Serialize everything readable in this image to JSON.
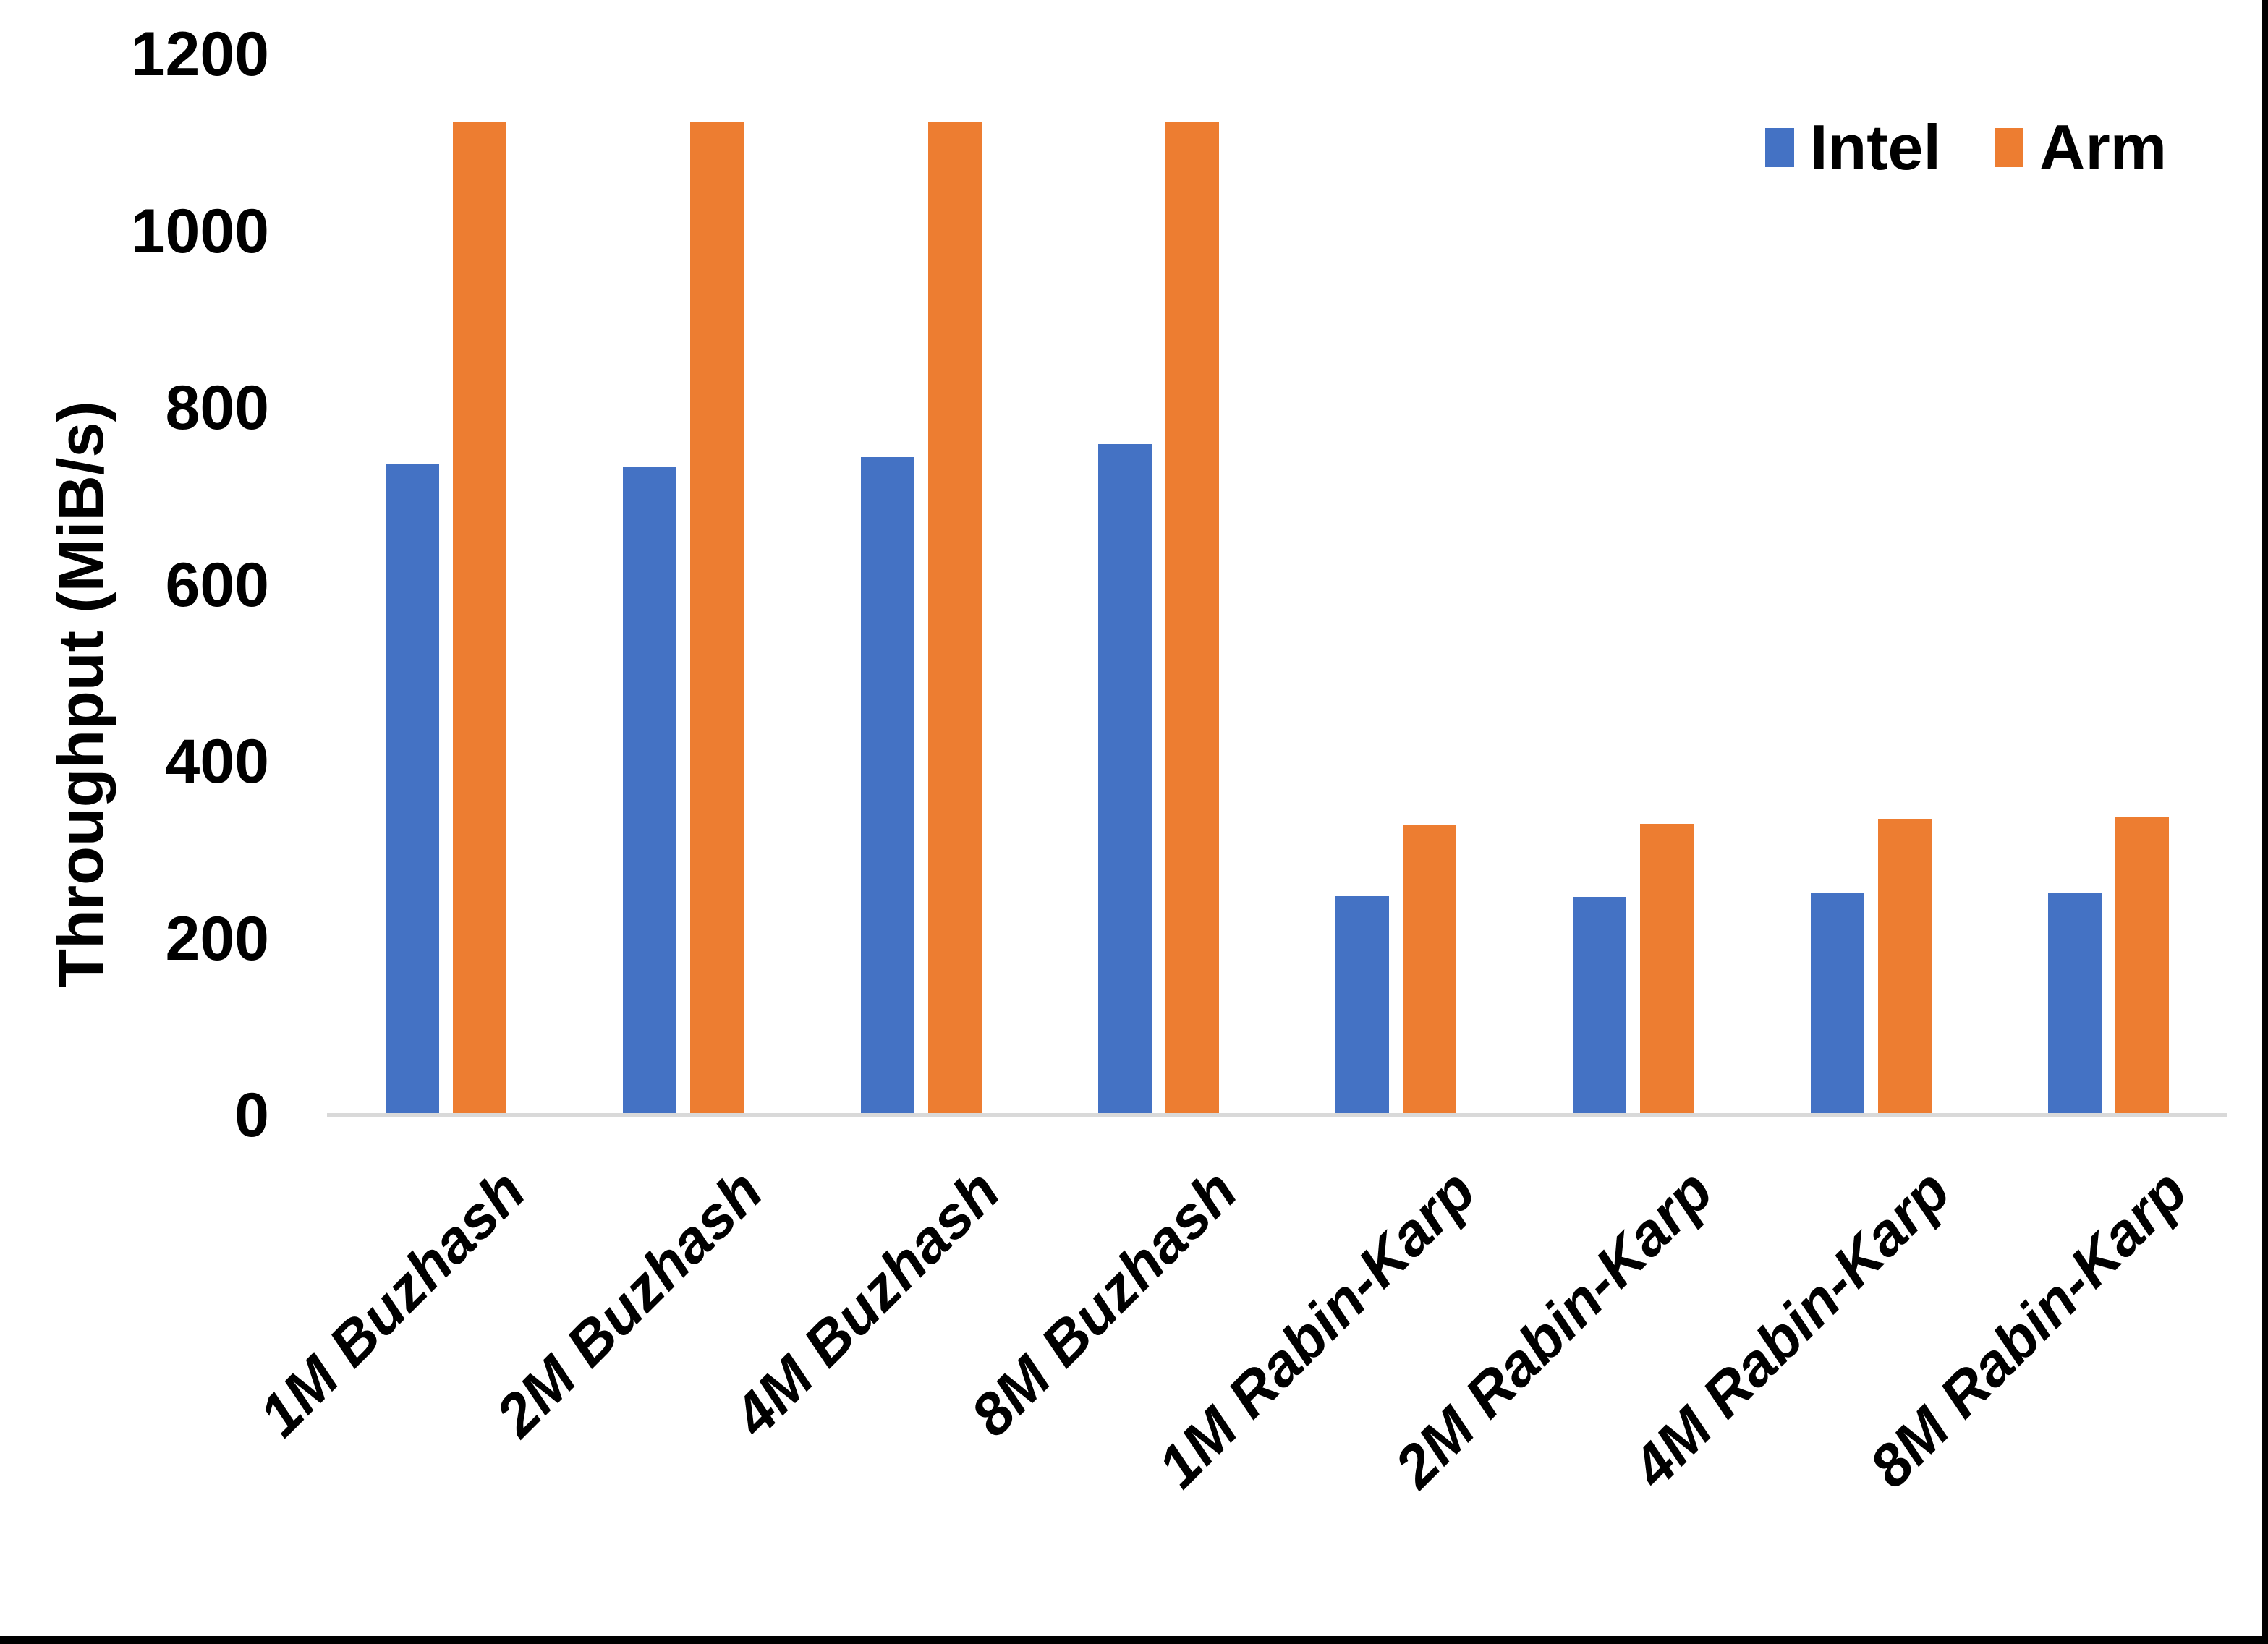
{
  "chart_data": {
    "type": "bar",
    "title": "",
    "xlabel": "",
    "ylabel": "Throughput (MiB/s)",
    "ylim": [
      0,
      1200
    ],
    "yticks": [
      0,
      200,
      400,
      600,
      800,
      1000,
      1200
    ],
    "grid": false,
    "legend_position": "top-right",
    "categories": [
      "1M Buzhash",
      "2M Buzhash",
      "4M Buzhash",
      "8M Buzhash",
      "1M Rabin-Karp",
      "2M Rabin-Karp",
      "4M Rabin-Karp",
      "8M Rabin-Karp"
    ],
    "series": [
      {
        "name": "Intel",
        "color": "#4472C4",
        "values": [
          736,
          734,
          744,
          759,
          248,
          247,
          251,
          252
        ]
      },
      {
        "name": "Arm",
        "color": "#ED7D31",
        "values": [
          1123,
          1123,
          1123,
          1123,
          328,
          330,
          335,
          337
        ]
      }
    ]
  },
  "colors": {
    "axis_line": "#d9d9d9",
    "frame": "#000000",
    "background": "#ffffff",
    "text": "#000000"
  }
}
